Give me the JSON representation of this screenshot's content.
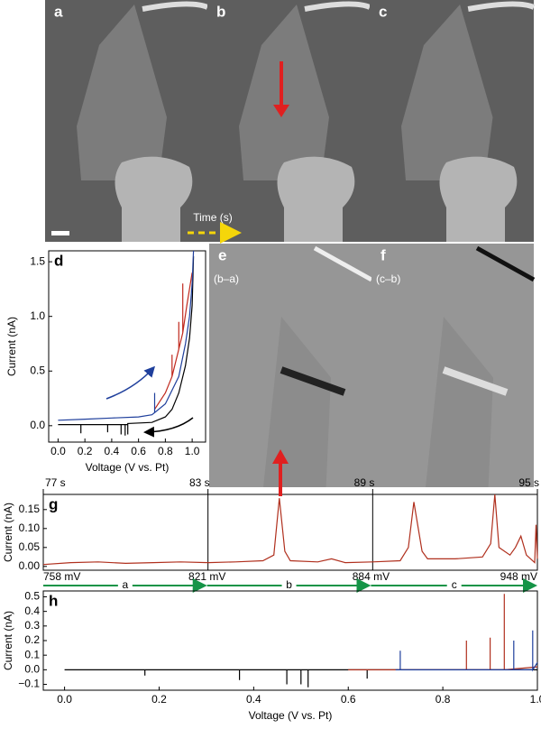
{
  "images": [
    {
      "label": "a"
    },
    {
      "label": "b"
    },
    {
      "label": "c"
    },
    {
      "label": "e",
      "caption": "(b–a)"
    },
    {
      "label": "f",
      "caption": "(c–b)"
    }
  ],
  "time_label": "Time (s)",
  "chart_data": [
    {
      "type": "line",
      "label": "d",
      "xlabel": "Voltage (V vs. Pt)",
      "ylabel": "Current (nA)",
      "xlim": [
        -0.07,
        1.1
      ],
      "ylim": [
        -0.15,
        1.6
      ],
      "xticks": [
        {
          "value": 0,
          "label": "0.0"
        },
        0.2,
        0.4,
        0.6,
        0.8,
        {
          "value": 1,
          "label": "1.0"
        }
      ],
      "yticks": [
        {
          "value": 0,
          "label": "0.0"
        },
        0.5,
        {
          "value": 1,
          "label": "1.0"
        },
        1.5
      ],
      "series": [
        {
          "color": "#000000",
          "x": [
            0,
            0.17,
            0.17,
            0.17,
            0.37,
            0.37,
            0.37,
            0.47,
            0.47,
            0.47,
            0.5,
            0.5,
            0.5,
            0.52,
            0.52,
            0.52,
            0.7,
            0.8,
            0.85,
            0.9,
            0.95,
            0.98,
            1.0,
            1.01
          ],
          "values": [
            0.01,
            0.01,
            -0.07,
            0.01,
            0.01,
            -0.06,
            0.01,
            0.01,
            -0.08,
            0.01,
            0.01,
            -0.09,
            0.01,
            0.01,
            -0.08,
            0.02,
            0.03,
            0.08,
            0.15,
            0.3,
            0.55,
            0.8,
            1.1,
            1.55
          ]
        },
        {
          "color": "#c0291e",
          "x": [
            0.72,
            0.8,
            0.85,
            0.85,
            0.85,
            0.9,
            0.9,
            0.9,
            0.93,
            0.93,
            0.93,
            0.96,
            1.0
          ],
          "values": [
            0.15,
            0.3,
            0.45,
            0.65,
            0.45,
            0.7,
            0.95,
            0.7,
            0.85,
            1.3,
            0.85,
            1.1,
            1.4
          ]
        },
        {
          "color": "#1f3f9c",
          "x": [
            0,
            0.2,
            0.4,
            0.6,
            0.7,
            0.72,
            0.72,
            0.72,
            0.8,
            0.9,
            0.95,
            0.98,
            1.0,
            1.01
          ],
          "values": [
            0.05,
            0.06,
            0.07,
            0.08,
            0.1,
            0.12,
            0.3,
            0.12,
            0.2,
            0.45,
            0.75,
            1.0,
            1.3,
            1.6
          ]
        }
      ]
    },
    {
      "type": "line",
      "label": "g",
      "ylabel": "Current (nA)",
      "xtick_position": "top",
      "xgrid": true,
      "xlim": [
        77,
        95
      ],
      "ylim": [
        -0.01,
        0.19
      ],
      "xticks": [
        {
          "value": 77,
          "label": "77 s"
        },
        {
          "value": 83,
          "label": "83 s"
        },
        {
          "value": 89,
          "label": "89 s"
        },
        {
          "value": 95,
          "label": "95 s"
        }
      ],
      "yticks": [
        {
          "value": 0,
          "label": "0.00"
        },
        0.05,
        {
          "value": 0.1,
          "label": "0.10"
        },
        0.15
      ],
      "x2lim": [
        758,
        948
      ],
      "x2ticks": [
        {
          "value": 758,
          "label": "758 mV"
        },
        {
          "value": 821,
          "label": "821 mV"
        },
        {
          "value": 884,
          "label": "884 mV"
        },
        {
          "value": 948,
          "label": "948 mV"
        }
      ],
      "segments": [
        "a",
        "b",
        "c"
      ],
      "series": [
        {
          "color": "#b0301e",
          "x": [
            77,
            78,
            79,
            80,
            81,
            82,
            83,
            84,
            85,
            85.4,
            85.6,
            85.8,
            86,
            87,
            87.5,
            88,
            89,
            90,
            90.3,
            90.5,
            90.8,
            91,
            92,
            93,
            93.3,
            93.45,
            93.6,
            94,
            94.2,
            94.4,
            94.6,
            94.9,
            94.95,
            95
          ],
          "values": [
            0.005,
            0.01,
            0.012,
            0.008,
            0.01,
            0.012,
            0.01,
            0.012,
            0.015,
            0.03,
            0.18,
            0.04,
            0.015,
            0.012,
            0.02,
            0.01,
            0.012,
            0.015,
            0.05,
            0.17,
            0.04,
            0.02,
            0.02,
            0.025,
            0.06,
            0.19,
            0.05,
            0.03,
            0.05,
            0.08,
            0.03,
            0.01,
            0.11,
            0.02
          ]
        }
      ]
    },
    {
      "type": "line",
      "label": "h",
      "xlabel": "Voltage (V vs. Pt)",
      "ylabel": "Current (nA)",
      "xlim": [
        -0.045,
        1.0
      ],
      "ylim": [
        -0.14,
        0.54
      ],
      "xticks": [
        {
          "value": 0,
          "label": "0.0"
        },
        0.2,
        0.4,
        0.6,
        0.8,
        {
          "value": 1,
          "label": "1.0"
        }
      ],
      "yticks": [
        {
          "value": -0.1,
          "label": "−0.1"
        },
        {
          "value": 0,
          "label": "0.0"
        },
        0.1,
        0.2,
        0.3,
        0.4,
        0.5
      ],
      "series": [
        {
          "color": "#000000",
          "x": [
            0,
            0.17,
            0.17,
            0.17,
            0.37,
            0.37,
            0.37,
            0.47,
            0.47,
            0.47,
            0.5,
            0.5,
            0.5,
            0.515,
            0.515,
            0.515,
            0.64,
            0.64,
            0.64,
            1.0
          ],
          "values": [
            0,
            0,
            -0.04,
            0,
            0,
            -0.07,
            0,
            0,
            -0.1,
            0,
            0,
            -0.1,
            0,
            0,
            -0.12,
            0,
            0,
            -0.06,
            0,
            0
          ]
        },
        {
          "color": "#b0301e",
          "x": [
            0.6,
            0.85,
            0.85,
            0.85,
            0.9,
            0.9,
            0.9,
            0.93,
            0.93,
            0.93,
            1.0
          ],
          "values": [
            0,
            0,
            0.2,
            0,
            0,
            0.22,
            0,
            0,
            0.52,
            0,
            0.02
          ]
        },
        {
          "color": "#1f3f9c",
          "x": [
            0.7,
            0.71,
            0.71,
            0.71,
            0.95,
            0.95,
            0.95,
            0.99,
            0.99,
            0.99,
            1.0
          ],
          "values": [
            0,
            0,
            0.13,
            0,
            0,
            0.2,
            0,
            0,
            0.27,
            0,
            0.05
          ]
        }
      ]
    }
  ]
}
